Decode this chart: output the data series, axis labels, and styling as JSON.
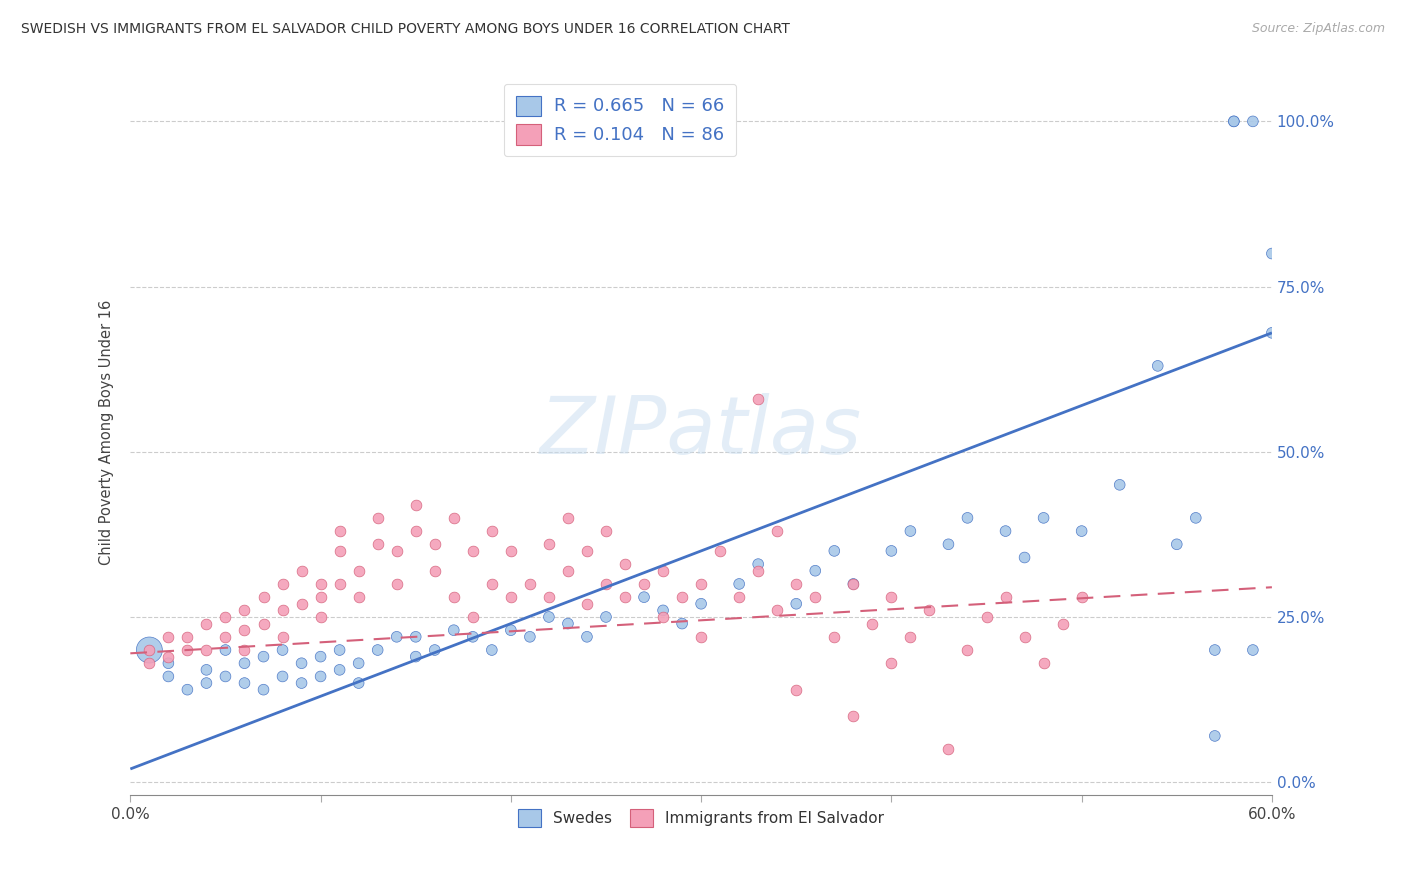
{
  "title": "SWEDISH VS IMMIGRANTS FROM EL SALVADOR CHILD POVERTY AMONG BOYS UNDER 16 CORRELATION CHART",
  "source": "Source: ZipAtlas.com",
  "ylabel": "Child Poverty Among Boys Under 16",
  "color_blue": "#a8c8e8",
  "color_pink": "#f4a0b8",
  "line_blue": "#4472c4",
  "line_pink": "#d4607a",
  "xmin": 0.0,
  "xmax": 0.6,
  "ymin": -0.02,
  "ymax": 1.08,
  "ytick_positions": [
    0.0,
    0.25,
    0.5,
    0.75,
    1.0
  ],
  "ytick_labels": [
    "",
    "",
    "",
    "",
    ""
  ],
  "ytick_labels_right": [
    "0.0%",
    "25.0%",
    "50.0%",
    "75.0%",
    "100.0%"
  ],
  "xtick_positions": [
    0.0,
    0.1,
    0.2,
    0.3,
    0.4,
    0.5,
    0.6
  ],
  "xtick_labels": [
    "0.0%",
    "",
    "",
    "",
    "",
    "",
    "60.0%"
  ],
  "legend_label1": "R = 0.665   N = 66",
  "legend_label2": "R = 0.104   N = 86",
  "bottom_legend1": "Swedes",
  "bottom_legend2": "Immigrants from El Salvador",
  "watermark": "ZIPatlas",
  "blue_trend_x": [
    0.0,
    0.6
  ],
  "blue_trend_y": [
    0.02,
    0.68
  ],
  "pink_trend_x": [
    0.0,
    0.6
  ],
  "pink_trend_y": [
    0.195,
    0.295
  ],
  "blue_x": [
    0.01,
    0.02,
    0.02,
    0.03,
    0.04,
    0.04,
    0.05,
    0.05,
    0.06,
    0.06,
    0.07,
    0.07,
    0.08,
    0.08,
    0.09,
    0.09,
    0.1,
    0.1,
    0.11,
    0.11,
    0.12,
    0.12,
    0.13,
    0.14,
    0.15,
    0.15,
    0.16,
    0.17,
    0.18,
    0.19,
    0.2,
    0.21,
    0.22,
    0.23,
    0.24,
    0.25,
    0.27,
    0.28,
    0.29,
    0.3,
    0.32,
    0.33,
    0.35,
    0.36,
    0.37,
    0.38,
    0.4,
    0.41,
    0.43,
    0.44,
    0.46,
    0.47,
    0.48,
    0.5,
    0.52,
    0.54,
    0.55,
    0.56,
    0.57,
    0.57,
    0.58,
    0.58,
    0.59,
    0.59,
    0.6,
    0.6
  ],
  "blue_y": [
    0.2,
    0.16,
    0.18,
    0.14,
    0.15,
    0.17,
    0.16,
    0.2,
    0.15,
    0.18,
    0.14,
    0.19,
    0.16,
    0.2,
    0.15,
    0.18,
    0.16,
    0.19,
    0.17,
    0.2,
    0.18,
    0.15,
    0.2,
    0.22,
    0.19,
    0.22,
    0.2,
    0.23,
    0.22,
    0.2,
    0.23,
    0.22,
    0.25,
    0.24,
    0.22,
    0.25,
    0.28,
    0.26,
    0.24,
    0.27,
    0.3,
    0.33,
    0.27,
    0.32,
    0.35,
    0.3,
    0.35,
    0.38,
    0.36,
    0.4,
    0.38,
    0.34,
    0.4,
    0.38,
    0.45,
    0.63,
    0.36,
    0.4,
    0.07,
    0.2,
    1.0,
    1.0,
    1.0,
    0.2,
    0.68,
    0.8
  ],
  "blue_sizes": [
    350,
    60,
    60,
    60,
    60,
    60,
    60,
    60,
    60,
    60,
    60,
    60,
    60,
    60,
    60,
    60,
    60,
    60,
    60,
    60,
    60,
    60,
    60,
    60,
    60,
    60,
    60,
    60,
    60,
    60,
    60,
    60,
    60,
    60,
    60,
    60,
    60,
    60,
    60,
    60,
    60,
    60,
    60,
    60,
    60,
    60,
    60,
    60,
    60,
    60,
    60,
    60,
    60,
    60,
    60,
    60,
    60,
    60,
    60,
    60,
    60,
    60,
    60,
    60,
    60,
    60
  ],
  "pink_x": [
    0.01,
    0.01,
    0.02,
    0.02,
    0.03,
    0.03,
    0.04,
    0.04,
    0.05,
    0.05,
    0.06,
    0.06,
    0.06,
    0.07,
    0.07,
    0.08,
    0.08,
    0.08,
    0.09,
    0.09,
    0.1,
    0.1,
    0.1,
    0.11,
    0.11,
    0.11,
    0.12,
    0.12,
    0.13,
    0.13,
    0.14,
    0.14,
    0.15,
    0.15,
    0.16,
    0.16,
    0.17,
    0.17,
    0.18,
    0.18,
    0.19,
    0.19,
    0.2,
    0.2,
    0.21,
    0.22,
    0.22,
    0.23,
    0.23,
    0.24,
    0.24,
    0.25,
    0.25,
    0.26,
    0.26,
    0.27,
    0.28,
    0.28,
    0.29,
    0.3,
    0.3,
    0.31,
    0.32,
    0.33,
    0.33,
    0.34,
    0.34,
    0.35,
    0.35,
    0.36,
    0.37,
    0.38,
    0.38,
    0.39,
    0.4,
    0.4,
    0.41,
    0.42,
    0.43,
    0.44,
    0.45,
    0.46,
    0.47,
    0.48,
    0.49,
    0.5
  ],
  "pink_y": [
    0.2,
    0.18,
    0.22,
    0.19,
    0.22,
    0.2,
    0.24,
    0.2,
    0.22,
    0.25,
    0.23,
    0.26,
    0.2,
    0.28,
    0.24,
    0.3,
    0.26,
    0.22,
    0.32,
    0.27,
    0.3,
    0.28,
    0.25,
    0.35,
    0.3,
    0.38,
    0.28,
    0.32,
    0.36,
    0.4,
    0.3,
    0.35,
    0.38,
    0.42,
    0.32,
    0.36,
    0.4,
    0.28,
    0.35,
    0.25,
    0.3,
    0.38,
    0.28,
    0.35,
    0.3,
    0.36,
    0.28,
    0.32,
    0.4,
    0.27,
    0.35,
    0.3,
    0.38,
    0.28,
    0.33,
    0.3,
    0.25,
    0.32,
    0.28,
    0.22,
    0.3,
    0.35,
    0.28,
    0.58,
    0.32,
    0.26,
    0.38,
    0.3,
    0.14,
    0.28,
    0.22,
    0.3,
    0.1,
    0.24,
    0.28,
    0.18,
    0.22,
    0.26,
    0.05,
    0.2,
    0.25,
    0.28,
    0.22,
    0.18,
    0.24,
    0.28
  ]
}
